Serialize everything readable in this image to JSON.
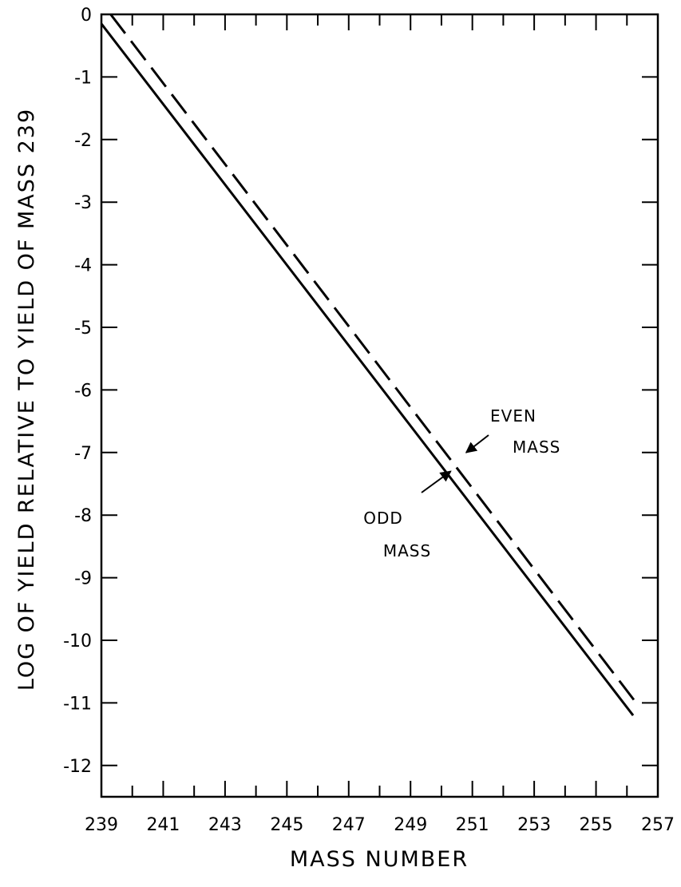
{
  "chart_data": {
    "type": "line",
    "title": "",
    "xlabel": "MASS NUMBER",
    "ylabel": "LOG OF YIELD RELATIVE TO YIELD OF MASS 239",
    "xlim": [
      239,
      257
    ],
    "ylim": [
      -12.5,
      0
    ],
    "x_tick_labels": [
      "239",
      "241",
      "243",
      "245",
      "247",
      "249",
      "251",
      "253",
      "255",
      "257"
    ],
    "x_tick_values": [
      239,
      241,
      243,
      245,
      247,
      249,
      251,
      253,
      255,
      257
    ],
    "y_tick_labels": [
      "0",
      "-1",
      "-2",
      "-3",
      "-4",
      "-5",
      "-6",
      "-7",
      "-8",
      "-9",
      "-10",
      "-11",
      "-12"
    ],
    "y_tick_values": [
      0,
      -1,
      -2,
      -3,
      -4,
      -5,
      -6,
      -7,
      -8,
      -9,
      -10,
      -11,
      -12
    ],
    "grid": false,
    "series": [
      {
        "x": [
          239.3,
          256.3
        ],
        "y": [
          0,
          -11
        ],
        "line_style": "dashed",
        "color": "#000000"
      },
      {
        "x": [
          239.0,
          256.2
        ],
        "y": [
          -0.15,
          -11.2
        ],
        "line_style": "solid",
        "color": "#000000"
      }
    ],
    "annotations": [
      {
        "lines": [
          "EVEN",
          "MASS"
        ],
        "arrow_to": [
          250.8,
          -7.0
        ]
      },
      {
        "lines": [
          "ODD",
          "MASS"
        ],
        "arrow_to": [
          250.3,
          -7.3
        ]
      }
    ]
  }
}
